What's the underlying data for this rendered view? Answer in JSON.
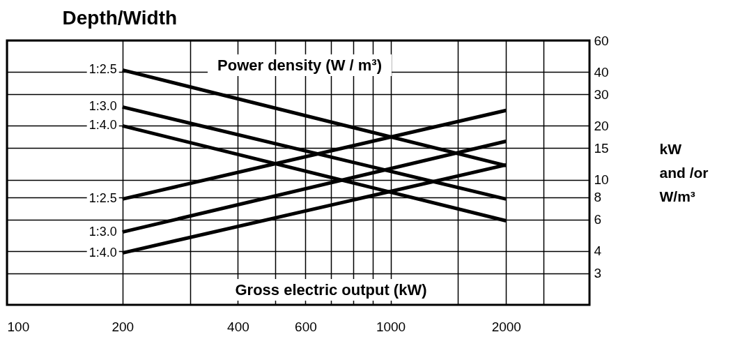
{
  "chart_data": {
    "type": "line",
    "title": "Depth/Width",
    "ylabel": "kW\nand /or\nW/m³",
    "annotations": [
      "Power density (W / m³)",
      "Gross electric output (kW)"
    ],
    "x": [
      200,
      2000
    ],
    "series": [
      {
        "name": "1:2.5",
        "color": "#000000",
        "values": [
          41,
          12
        ]
      },
      {
        "name": "1:3.0",
        "color": "#000000",
        "values": [
          25.5,
          7.8
        ]
      },
      {
        "name": "1:4.0",
        "color": "#000000",
        "values": [
          20,
          5.9
        ]
      },
      {
        "name": "1:2.5",
        "color": "#000000",
        "values": [
          7.8,
          24.4
        ]
      },
      {
        "name": "1:3.0",
        "color": "#000000",
        "values": [
          5.1,
          16.4
        ]
      },
      {
        "name": "1:4.0",
        "color": "#000000",
        "values": [
          3.9,
          12.1
        ]
      }
    ],
    "log": "xy",
    "xlim": [
      100,
      3300
    ],
    "ylim": [
      2,
      60
    ],
    "xticks": [
      100,
      200,
      {
        "value": 300,
        "label": null
      },
      400,
      {
        "value": 500,
        "label": null
      },
      600,
      {
        "value": 700,
        "label": null
      },
      {
        "value": 800,
        "label": null
      },
      {
        "value": 900,
        "label": null
      },
      1000,
      {
        "value": 1500,
        "label": null
      },
      2000,
      {
        "value": 2500,
        "label": null
      }
    ],
    "yticks": [
      3,
      4,
      6,
      8,
      10,
      15,
      20,
      30,
      40,
      60
    ],
    "grid": true,
    "legend": false,
    "marker": "none",
    "line_style": "solid"
  }
}
